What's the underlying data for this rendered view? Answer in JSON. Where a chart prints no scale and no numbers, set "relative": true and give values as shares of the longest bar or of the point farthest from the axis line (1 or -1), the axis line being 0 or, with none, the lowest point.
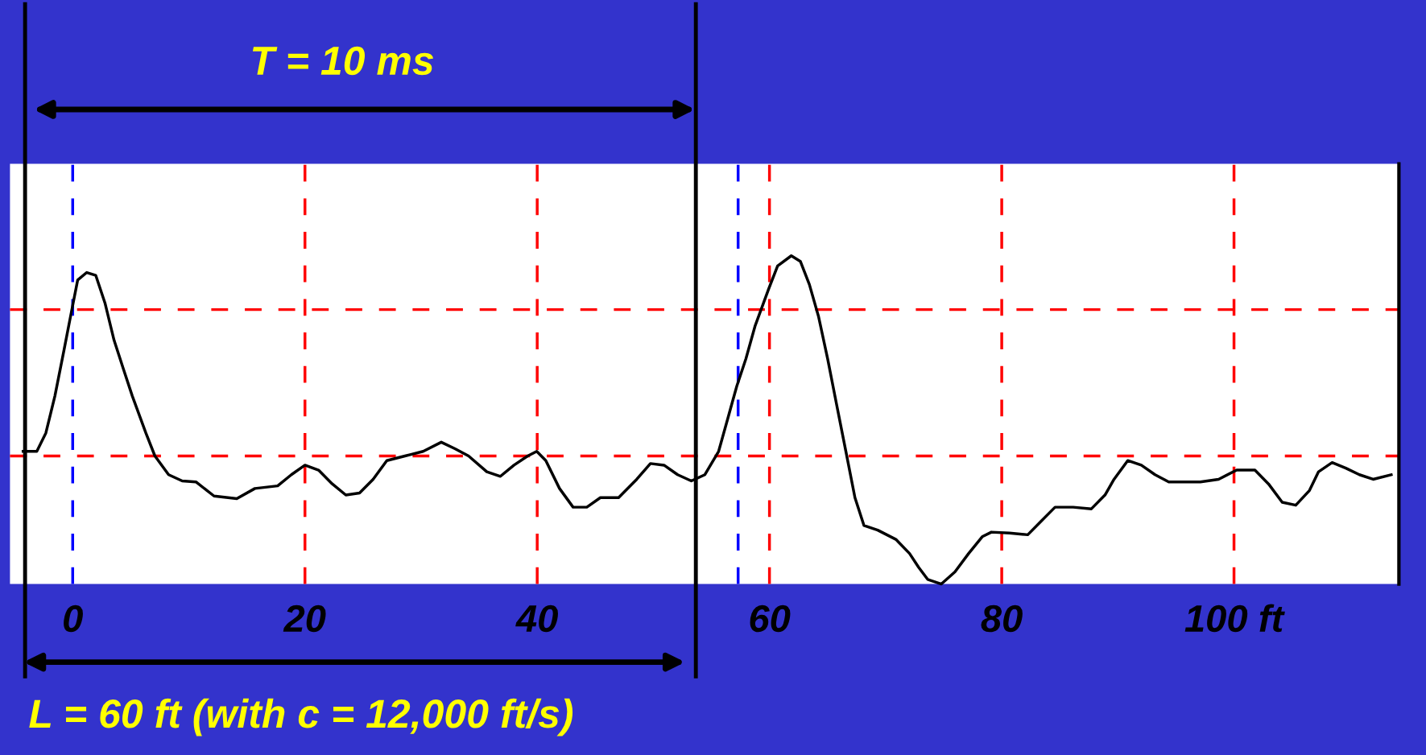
{
  "chart_data": {
    "type": "line",
    "relative": true,
    "xlim": [
      -5.4,
      114.2
    ],
    "xticks": [
      0,
      20,
      40,
      60,
      80,
      {
        "value": 100,
        "label": "100 ft"
      }
    ],
    "series": [
      {
        "color": "#000000",
        "x": [
          -4.27,
          -3.09,
          -2.31,
          -1.53,
          -0.74,
          -0.12,
          0.43,
          1.21,
          1.99,
          2.78,
          3.56,
          4.34,
          5.13,
          6.3,
          7.08,
          8.26,
          9.43,
          10.61,
          12.17,
          14.13,
          15.69,
          17.65,
          18.83,
          20.0,
          21.17,
          22.35,
          23.52,
          24.7,
          25.87,
          27.05,
          28.61,
          30.18,
          31.74,
          32.92,
          34.09,
          35.66,
          36.83,
          38.0,
          39.18,
          39.96,
          40.74,
          41.92,
          43.09,
          44.27,
          45.44,
          47.01,
          48.57,
          49.75,
          50.92,
          52.09,
          53.27,
          54.44,
          55.62,
          56.4,
          57.18,
          57.97,
          58.75,
          59.92,
          60.7,
          61.88,
          62.66,
          63.44,
          64.23,
          65.01,
          65.79,
          66.58,
          67.36,
          68.14,
          69.32,
          70.88,
          72.06,
          72.84,
          73.62,
          74.8,
          75.97,
          77.15,
          78.32,
          79.11,
          80.67,
          82.24,
          83.41,
          84.59,
          86.15,
          87.72,
          88.89,
          89.67,
          90.85,
          92.02,
          93.2,
          94.38,
          95.54,
          97.1,
          98.67,
          100.23,
          101.8,
          102.97,
          104.15,
          105.32,
          106.5,
          107.28,
          108.45,
          109.63,
          110.8,
          111.98,
          113.54
        ],
        "values": [
          0.404,
          0.404,
          0.46,
          0.573,
          0.714,
          0.827,
          0.926,
          0.949,
          0.94,
          0.856,
          0.743,
          0.658,
          0.573,
          0.46,
          0.39,
          0.333,
          0.314,
          0.311,
          0.268,
          0.26,
          0.291,
          0.299,
          0.333,
          0.362,
          0.347,
          0.305,
          0.271,
          0.277,
          0.319,
          0.376,
          0.39,
          0.404,
          0.432,
          0.412,
          0.39,
          0.342,
          0.328,
          0.362,
          0.39,
          0.404,
          0.376,
          0.291,
          0.234,
          0.234,
          0.263,
          0.263,
          0.319,
          0.367,
          0.362,
          0.333,
          0.314,
          0.333,
          0.404,
          0.503,
          0.602,
          0.686,
          0.785,
          0.898,
          0.969,
          1.0,
          0.983,
          0.912,
          0.814,
          0.686,
          0.545,
          0.404,
          0.263,
          0.178,
          0.164,
          0.136,
          0.093,
          0.051,
          0.014,
          0.0,
          0.037,
          0.093,
          0.144,
          0.158,
          0.155,
          0.15,
          0.192,
          0.234,
          0.234,
          0.229,
          0.271,
          0.319,
          0.376,
          0.362,
          0.333,
          0.311,
          0.311,
          0.311,
          0.319,
          0.347,
          0.347,
          0.305,
          0.249,
          0.24,
          0.285,
          0.342,
          0.37,
          0.353,
          0.333,
          0.319,
          0.333
        ]
      }
    ],
    "ref_lines": [
      {
        "axis": "x",
        "value": 20,
        "color": "#ff0000",
        "line_style": "dashed"
      },
      {
        "axis": "x",
        "value": 40,
        "color": "#ff0000",
        "line_style": "dashed"
      },
      {
        "axis": "x",
        "value": 60,
        "color": "#ff0000",
        "line_style": "dashed"
      },
      {
        "axis": "x",
        "value": 80,
        "color": "#ff0000",
        "line_style": "dashed"
      },
      {
        "axis": "x",
        "value": 100,
        "color": "#ff0000",
        "line_style": "dashed"
      },
      {
        "axis": "y",
        "value": 0.836,
        "color": "#ff0000",
        "line_style": "dashed"
      },
      {
        "axis": "y",
        "value": 0.39,
        "color": "#ff0000",
        "line_style": "dashed"
      },
      {
        "axis": "x",
        "value": 0,
        "color": "#0000ff",
        "line_style": "dashed"
      },
      {
        "axis": "x",
        "value": 57.3,
        "color": "#0000ff",
        "line_style": "dashed"
      },
      {
        "axis": "x",
        "value": -4.1,
        "color": "#000000",
        "line_style": "solid"
      },
      {
        "axis": "x",
        "value": 53.66,
        "color": "#000000",
        "line_style": "solid"
      }
    ],
    "annotations": [
      "T = 10 ms",
      "L = 60 ft (with c = 12,000 ft/s)"
    ],
    "grid": false,
    "legend": false,
    "marker": "none",
    "line_style": "solid"
  }
}
